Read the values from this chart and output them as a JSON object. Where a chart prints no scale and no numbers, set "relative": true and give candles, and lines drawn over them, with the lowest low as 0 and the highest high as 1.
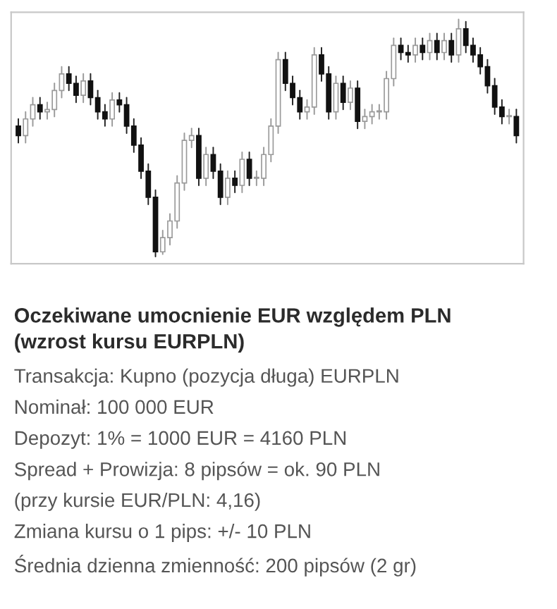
{
  "chart_data": {
    "type": "candlestick",
    "relative": true,
    "grid": false,
    "title": "Oczekiwane umocnienie EUR względem PLN\n(wzrost kursu EURPLN)",
    "annotations": [
      "Transakcja: Kupno (pozycja długa) EURPLN",
      "Nominał: 100 000 EUR",
      "Depozyt: 1% = 1000 EUR = 4160 PLN",
      "Spread + Prowizja: 8 pipsów = ok. 90 PLN",
      "(przy kursie EUR/PLN: 4,16)",
      "Zmiana kursu o 1 pips: +/- 10 PLN",
      "Średnia dzienna zmienność: 200 pipsów (2 gr)"
    ],
    "categories": [
      null,
      null,
      null,
      null,
      null,
      null,
      null,
      null,
      null,
      null,
      null,
      null,
      null,
      null,
      null,
      null,
      null,
      null,
      null,
      null,
      null,
      null,
      null,
      null,
      null,
      null,
      null,
      null,
      null,
      null,
      null,
      null,
      null,
      null,
      null,
      null,
      null,
      null,
      null,
      null,
      null,
      null,
      null,
      null,
      null,
      null,
      null,
      null,
      null,
      null,
      null,
      null,
      null,
      null,
      null,
      null,
      null,
      null,
      null,
      null,
      null,
      null,
      null,
      null,
      null,
      null,
      null,
      null,
      null,
      null
    ],
    "ohlc": [
      [
        0.55,
        0.58,
        0.48,
        0.51
      ],
      [
        0.51,
        0.61,
        0.48,
        0.58
      ],
      [
        0.58,
        0.67,
        0.55,
        0.64
      ],
      [
        0.64,
        0.67,
        0.58,
        0.61
      ],
      [
        0.61,
        0.65,
        0.58,
        0.62
      ],
      [
        0.62,
        0.73,
        0.59,
        0.7
      ],
      [
        0.7,
        0.8,
        0.67,
        0.77
      ],
      [
        0.77,
        0.8,
        0.7,
        0.73
      ],
      [
        0.73,
        0.76,
        0.65,
        0.68
      ],
      [
        0.68,
        0.77,
        0.65,
        0.74
      ],
      [
        0.74,
        0.77,
        0.64,
        0.67
      ],
      [
        0.67,
        0.7,
        0.58,
        0.61
      ],
      [
        0.61,
        0.64,
        0.55,
        0.58
      ],
      [
        0.58,
        0.69,
        0.55,
        0.66
      ],
      [
        0.66,
        0.69,
        0.61,
        0.64
      ],
      [
        0.64,
        0.67,
        0.52,
        0.55
      ],
      [
        0.55,
        0.58,
        0.44,
        0.47
      ],
      [
        0.47,
        0.5,
        0.33,
        0.36
      ],
      [
        0.36,
        0.39,
        0.22,
        0.25
      ],
      [
        0.25,
        0.28,
        0.0,
        0.02
      ],
      [
        0.02,
        0.11,
        0.01,
        0.08
      ],
      [
        0.08,
        0.18,
        0.05,
        0.15
      ],
      [
        0.15,
        0.34,
        0.12,
        0.31
      ],
      [
        0.31,
        0.52,
        0.28,
        0.49
      ],
      [
        0.49,
        0.54,
        0.46,
        0.51
      ],
      [
        0.51,
        0.54,
        0.3,
        0.33
      ],
      [
        0.33,
        0.46,
        0.3,
        0.43
      ],
      [
        0.43,
        0.46,
        0.33,
        0.36
      ],
      [
        0.36,
        0.39,
        0.22,
        0.25
      ],
      [
        0.25,
        0.36,
        0.22,
        0.33
      ],
      [
        0.33,
        0.36,
        0.27,
        0.3
      ],
      [
        0.3,
        0.44,
        0.27,
        0.41
      ],
      [
        0.41,
        0.44,
        0.3,
        0.33
      ],
      [
        0.33,
        0.36,
        0.3,
        0.33
      ],
      [
        0.33,
        0.46,
        0.3,
        0.43
      ],
      [
        0.43,
        0.58,
        0.4,
        0.55
      ],
      [
        0.55,
        0.86,
        0.52,
        0.83
      ],
      [
        0.83,
        0.86,
        0.7,
        0.73
      ],
      [
        0.73,
        0.76,
        0.64,
        0.67
      ],
      [
        0.67,
        0.7,
        0.58,
        0.61
      ],
      [
        0.61,
        0.66,
        0.58,
        0.63
      ],
      [
        0.63,
        0.88,
        0.6,
        0.85
      ],
      [
        0.85,
        0.88,
        0.74,
        0.77
      ],
      [
        0.77,
        0.8,
        0.58,
        0.61
      ],
      [
        0.61,
        0.76,
        0.58,
        0.73
      ],
      [
        0.73,
        0.76,
        0.62,
        0.65
      ],
      [
        0.65,
        0.74,
        0.62,
        0.71
      ],
      [
        0.71,
        0.74,
        0.54,
        0.57
      ],
      [
        0.57,
        0.62,
        0.54,
        0.59
      ],
      [
        0.59,
        0.64,
        0.56,
        0.61
      ],
      [
        0.61,
        0.64,
        0.58,
        0.61
      ],
      [
        0.61,
        0.78,
        0.58,
        0.75
      ],
      [
        0.75,
        0.92,
        0.72,
        0.89
      ],
      [
        0.89,
        0.92,
        0.83,
        0.86
      ],
      [
        0.86,
        0.89,
        0.82,
        0.85
      ],
      [
        0.85,
        0.92,
        0.82,
        0.89
      ],
      [
        0.89,
        0.92,
        0.83,
        0.86
      ],
      [
        0.86,
        0.94,
        0.83,
        0.91
      ],
      [
        0.91,
        0.94,
        0.83,
        0.86
      ],
      [
        0.86,
        0.94,
        0.83,
        0.91
      ],
      [
        0.91,
        0.94,
        0.82,
        0.85
      ],
      [
        0.85,
        1.0,
        0.82,
        0.96
      ],
      [
        0.96,
        0.99,
        0.86,
        0.89
      ],
      [
        0.89,
        0.92,
        0.82,
        0.85
      ],
      [
        0.85,
        0.88,
        0.77,
        0.8
      ],
      [
        0.8,
        0.83,
        0.69,
        0.72
      ],
      [
        0.72,
        0.75,
        0.6,
        0.63
      ],
      [
        0.63,
        0.66,
        0.56,
        0.59
      ],
      [
        0.59,
        0.62,
        0.56,
        0.59
      ],
      [
        0.59,
        0.62,
        0.48,
        0.51
      ]
    ]
  }
}
